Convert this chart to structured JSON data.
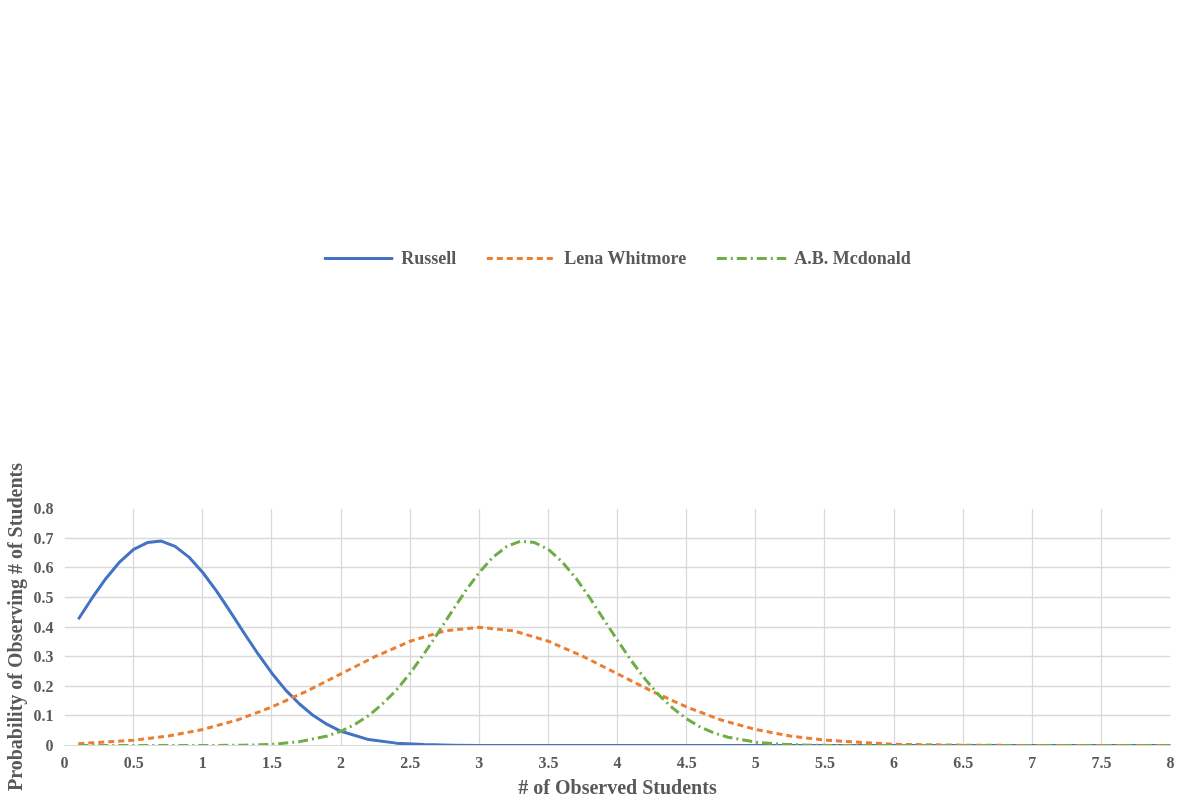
{
  "chart_data": {
    "type": "line",
    "xlabel": "# of Observed Students",
    "ylabel": "Probability of Observing # of Students",
    "xlim": [
      0,
      8
    ],
    "ylim": [
      0,
      0.8
    ],
    "xticks": [
      0,
      0.5,
      1,
      1.5,
      2,
      2.5,
      3,
      3.5,
      4,
      4.5,
      5,
      5.5,
      6,
      6.5,
      7,
      7.5,
      8
    ],
    "yticks": [
      0,
      0.1,
      0.2,
      0.3,
      0.4,
      0.5,
      0.6,
      0.7,
      0.8
    ],
    "grid": true,
    "legend": "top",
    "marker": "none",
    "series": [
      {
        "name": "Russell",
        "color": "#4472c4",
        "line_style": "solid",
        "x": [
          0.1,
          0.2,
          0.3,
          0.4,
          0.5,
          0.6,
          0.7,
          0.8,
          0.9,
          1.0,
          1.1,
          1.2,
          1.3,
          1.4,
          1.5,
          1.6,
          1.7,
          1.8,
          1.9,
          2.0,
          2.2,
          2.4,
          2.6,
          2.8,
          3.0,
          3.5,
          4,
          4.5,
          5,
          5.5,
          6,
          6.5,
          7,
          7.5,
          8
        ],
        "values": [
          0.426,
          0.498,
          0.564,
          0.62,
          0.662,
          0.685,
          0.69,
          0.672,
          0.636,
          0.584,
          0.521,
          0.451,
          0.379,
          0.309,
          0.244,
          0.187,
          0.14,
          0.101,
          0.071,
          0.048,
          0.02,
          0.008,
          0.003,
          0.001,
          0,
          0,
          0,
          0,
          0,
          0,
          0,
          0,
          0,
          0,
          0
        ]
      },
      {
        "name": "Lena Whitmore",
        "color": "#ed7d31",
        "line_style": "dashed",
        "x": [
          0.1,
          0.5,
          0.75,
          1.0,
          1.25,
          1.5,
          1.75,
          2.0,
          2.25,
          2.5,
          2.75,
          3.0,
          3.25,
          3.5,
          3.75,
          4.0,
          4.25,
          4.5,
          4.75,
          5.0,
          5.25,
          5.5,
          6.0,
          6.5,
          7.0,
          7.5,
          8.0
        ],
        "values": [
          0.006,
          0.018,
          0.032,
          0.054,
          0.086,
          0.13,
          0.183,
          0.242,
          0.301,
          0.352,
          0.387,
          0.399,
          0.387,
          0.352,
          0.301,
          0.242,
          0.183,
          0.13,
          0.086,
          0.054,
          0.032,
          0.018,
          0.004,
          0.001,
          0,
          0,
          0
        ]
      },
      {
        "name": "A.B. Mcdonald",
        "color": "#70ad47",
        "line_style": "dashdot",
        "x": [
          0.1,
          0.5,
          1.0,
          1.3,
          1.5,
          1.7,
          1.9,
          2.0,
          2.1,
          2.2,
          2.3,
          2.4,
          2.5,
          2.6,
          2.7,
          2.8,
          2.9,
          3.0,
          3.1,
          3.2,
          3.3,
          3.4,
          3.5,
          3.6,
          3.7,
          3.8,
          3.9,
          4.0,
          4.1,
          4.2,
          4.3,
          4.4,
          4.5,
          4.6,
          4.7,
          4.8,
          5.0,
          5.2,
          5.4,
          5.6,
          6.0,
          6.5,
          7.0,
          7.5,
          8.0
        ],
        "values": [
          0,
          0,
          0,
          0.001,
          0.004,
          0.013,
          0.032,
          0.048,
          0.071,
          0.101,
          0.14,
          0.187,
          0.244,
          0.309,
          0.379,
          0.451,
          0.521,
          0.584,
          0.636,
          0.672,
          0.69,
          0.685,
          0.662,
          0.62,
          0.564,
          0.498,
          0.426,
          0.355,
          0.286,
          0.224,
          0.17,
          0.126,
          0.09,
          0.062,
          0.042,
          0.028,
          0.011,
          0.004,
          0.001,
          0,
          0,
          0,
          0,
          0,
          0
        ]
      }
    ]
  }
}
